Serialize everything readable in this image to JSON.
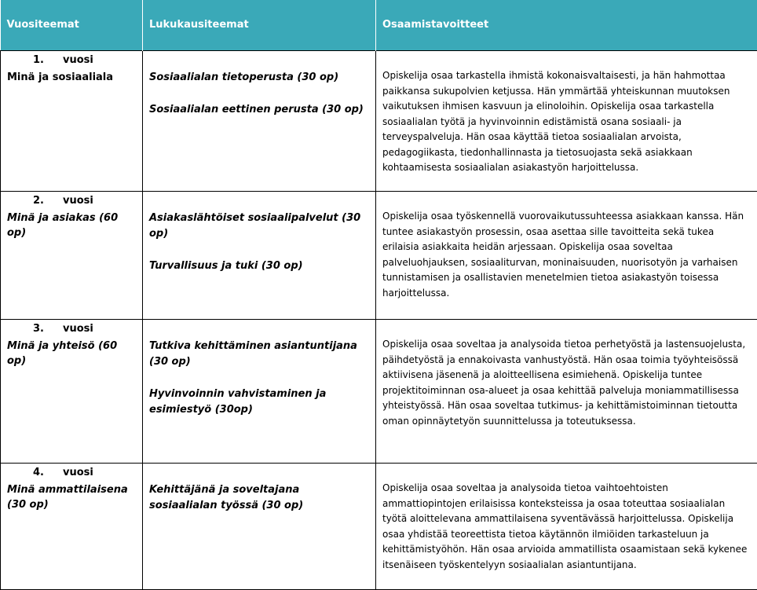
{
  "table": {
    "header": [
      "Vuositeemat",
      "Lukukausiteemat",
      "Osaamistavoitteet"
    ],
    "rows": [
      {
        "year_number": "1.",
        "year_word": "vuosi",
        "theme": "Minä ja sosiaaliala",
        "courses": [
          "Sosiaalialan tietoperusta (30 op)",
          "Sosiaalialan eettinen perusta (30 op)"
        ],
        "goals": "Opiskelija osaa tarkastella ihmistä kokonaisvaltaisesti, ja hän hahmottaa paikkansa sukupolvien ketjussa.  Hän ymmärtää yhteiskunnan muutoksen vaikutuksen ihmisen kasvuun ja elinoloihin. Opiskelija osaa tarkastella sosiaalialan työtä ja hyvinvoinnin edistämistä osana sosiaali- ja terveyspalveluja. Hän osaa käyttää tietoa sosiaalialan arvoista, pedagogiikasta, tiedonhallinnasta ja tietosuojasta sekä asiakkaan kohtaamisesta sosiaalialan asiakastyön harjoittelussa."
      },
      {
        "year_number": "2.",
        "year_word": "vuosi",
        "theme": "Minä ja asiakas (60 op)",
        "courses": [
          "Asiakaslähtöiset sosiaalipalvelut (30 op)",
          "Turvallisuus ja tuki (30 op)"
        ],
        "goals": "Opiskelija osaa työskennellä vuorovaikutussuhteessa asiakkaan kanssa. Hän tuntee asiakastyön prosessin, osaa asettaa sille tavoitteita sekä tukea erilaisia asiakkaita heidän arjessaan. Opiskelija osaa soveltaa palveluohjauksen, sosiaaliturvan, moninaisuuden, nuorisotyön ja varhaisen tunnistamisen ja osallistavien menetelmien tietoa asiakastyön toisessa harjoittelussa."
      },
      {
        "year_number": "3.",
        "year_word": "vuosi",
        "theme": "Minä ja yhteisö (60 op)",
        "courses": [
          "Tutkiva kehittäminen asiantuntijana (30 op)",
          "Hyvinvoinnin vahvistaminen ja esimiestyö (30op)"
        ],
        "goals": "Opiskelija osaa soveltaa ja analysoida tietoa perhetyöstä ja lastensuojelusta, päihdetyöstä ja ennakoivasta vanhustyöstä. Hän osaa toimia työyhteisössä aktiivisena jäsenenä ja aloitteellisena esimiehenä. Opiskelija tuntee projektitoiminnan osa-alueet ja osaa kehittää palveluja moniammatillisessa yhteistyössä. Hän osaa soveltaa tutkimus- ja kehittämistoiminnan tietoutta oman opinnäytetyön suunnittelussa ja toteutuksessa."
      },
      {
        "year_number": "4.",
        "year_word": "vuosi",
        "theme": "Minä ammattilaisena (30 op)",
        "courses": [
          "Kehittäjänä ja soveltajana sosiaalialan työssä (30 op)"
        ],
        "goals": "Opiskelija osaa soveltaa ja analysoida tietoa vaihtoehtoisten ammattiopintojen erilaisissa konteksteissa ja osaa toteuttaa sosiaalialan työtä aloittelevana ammattilaisena syventävässä harjoittelussa. Opiskelija osaa yhdistää teoreettista tietoa käytännön ilmiöiden tarkasteluun ja kehittämistyöhön. Hän osaa arvioida ammatillista osaamistaan sekä kykenee itsenäiseen työskentelyyn sosiaalialan asiantuntijana."
      }
    ]
  }
}
